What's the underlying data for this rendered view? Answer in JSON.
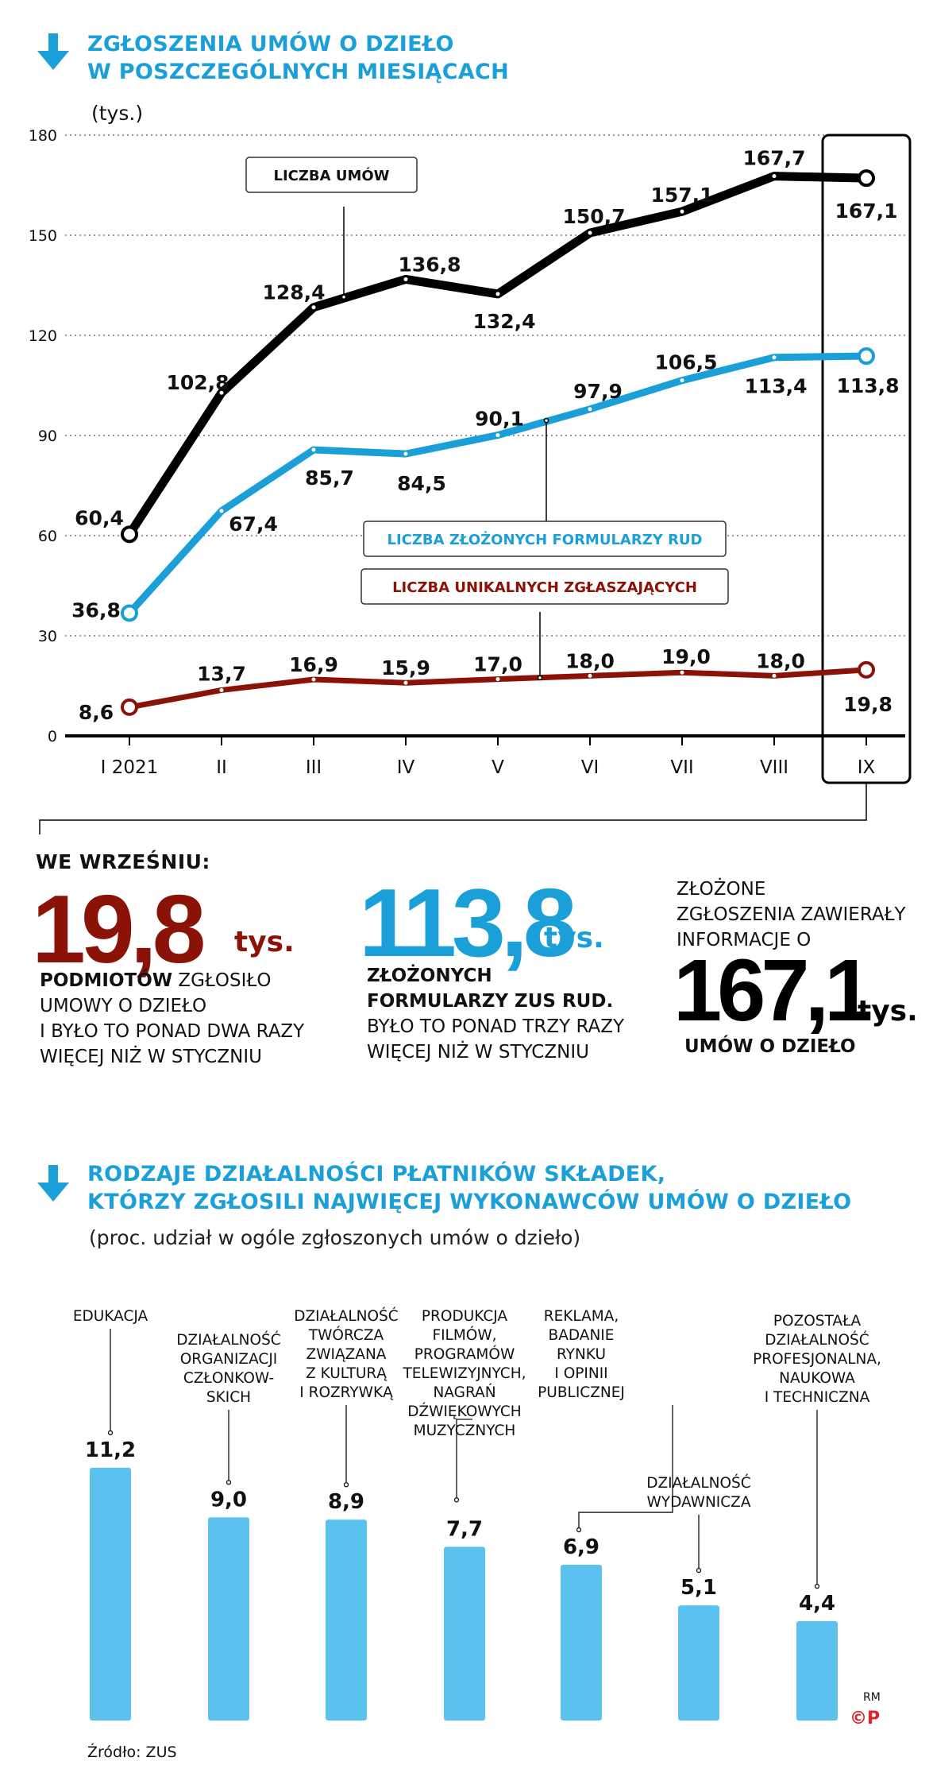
{
  "chart_data": [
    {
      "type": "line",
      "title": "ZGŁOSZENIA UMÓW O DZIEŁO\nW POSZCZEGÓLNYCH MIESIĄCACH",
      "title_line1": "ZGŁOSZENIA UMÓW O DZIEŁO",
      "title_line2": "W POSZCZEGÓLNYCH MIESIĄCACH",
      "unit": "(tys.)",
      "categories": [
        "I 2021",
        "II",
        "III",
        "IV",
        "V",
        "VI",
        "VII",
        "VIII",
        "IX"
      ],
      "y_ticks": [
        "0",
        "30",
        "60",
        "90",
        "120",
        "150",
        "180"
      ],
      "ylim": [
        0,
        180
      ],
      "grid": true,
      "series": [
        {
          "name": "LICZBA UMÓW",
          "color": "#000000",
          "values": [
            60.4,
            102.8,
            128.4,
            136.8,
            132.4,
            150.7,
            157.1,
            167.7,
            167.1
          ],
          "labels": [
            "60,4",
            "102,8",
            "128,4",
            "136,8",
            "132,4",
            "150,7",
            "157,1",
            "167,7",
            "167,1"
          ]
        },
        {
          "name": "LICZBA ZŁOŻONYCH FORMULARZY RUD",
          "color": "#1a9fd9",
          "values": [
            36.8,
            67.4,
            85.7,
            84.5,
            90.1,
            97.9,
            106.5,
            113.4,
            113.8
          ],
          "labels": [
            "36,8",
            "67,4",
            "85,7",
            "84,5",
            "90,1",
            "97,9",
            "106,5",
            "113,4",
            "113,8"
          ]
        },
        {
          "name": "LICZBA UNIKALNYCH ZGŁASZAJĄCYCH",
          "color": "#8b1206",
          "values": [
            8.6,
            13.7,
            16.9,
            15.9,
            17.0,
            18.0,
            19.0,
            18.0,
            19.8
          ],
          "labels": [
            "8,6",
            "13,7",
            "16,9",
            "15,9",
            "17,0",
            "18,0",
            "19,0",
            "18,0",
            "19,8"
          ]
        }
      ]
    },
    {
      "type": "bar",
      "title": "RODZAJE DZIAŁALNOŚCI PŁATNIKÓW SKŁADEK,\nKTÓRZY ZGŁOSILI NAJWIĘCEJ WYKONAWCÓW UMÓW O DZIEŁO",
      "title_line1": "RODZAJE DZIAŁALNOŚCI PŁATNIKÓW SKŁADEK,",
      "title_line2": "KTÓRZY ZGŁOSILI NAJWIĘCEJ WYKONAWCÓW UMÓW O DZIEŁO",
      "subtitle": "(proc. udział w ogóle zgłoszonych umów o dzieło)",
      "color": "#5bc2ef",
      "categories": [
        [
          "EDUKACJA"
        ],
        [
          "DZIAŁALNOŚĆ",
          "ORGANIZACJI",
          "CZŁONKOW-",
          "SKICH"
        ],
        [
          "DZIAŁALNOŚĆ",
          "TWÓRCZA",
          "ZWIĄZANA",
          "Z KULTURĄ",
          "I ROZRYWKĄ"
        ],
        [
          "PRODUKCJA",
          "FILMÓW,",
          "PROGRAMÓW",
          "TELEWIZYJNYCH,",
          "NAGRAŃ",
          "DŹWIĘKOWYCH",
          "MUZYCZNYCH"
        ],
        [
          "REKLAMA,",
          "BADANIE",
          "RYNKU",
          "I OPINII",
          "PUBLICZNEJ"
        ],
        [
          "DZIAŁALNOŚĆ",
          "WYDAWNICZA"
        ],
        [
          "POZOSTAŁA",
          "DZIAŁALNOŚĆ",
          "PROFESJONALNA,",
          "NAUKOWA",
          "I TECHNICZNA"
        ]
      ],
      "values": [
        11.2,
        9.0,
        8.9,
        7.7,
        6.9,
        5.1,
        4.4
      ],
      "labels": [
        "11,2",
        "9,0",
        "8,9",
        "7,7",
        "6,9",
        "5,1",
        "4,4"
      ]
    }
  ],
  "summary": {
    "heading": "WE  WRZEŚNIU:",
    "block1": {
      "number": "19,8",
      "unit": "tys.",
      "bold": "PODMIOTÓW",
      "line1_rest": " ZGŁOSIŁO",
      "line2": "UMOWY O DZIEŁO",
      "line3": "I BYŁO TO PONAD DWA RAZY",
      "line4": "WIĘCEJ NIŻ  W STYCZNIU"
    },
    "block2": {
      "number": "113,8",
      "unit": "tys.",
      "bold1": "ZŁOŻONYCH",
      "bold2": "FORMULARZY ZUS RUD.",
      "line3": "BYŁO TO PONAD TRZY RAZY",
      "line4": "WIĘCEJ NIŻ W STYCZNIU"
    },
    "block3": {
      "line1": "ZŁOŻONE",
      "line2": "ZGŁOSZENIA ZAWIERAŁY",
      "line3": "INFORMACJE O",
      "number": "167,1",
      "unit": "tys.",
      "bold": "UMÓW O DZIEŁO"
    }
  },
  "footer": {
    "source": "Źródło: ZUS",
    "author": "RM",
    "logo": "©P"
  },
  "colors": {
    "accent": "#1a9fd9",
    "dark_red": "#8b1206",
    "black": "#000000",
    "bar": "#5bc2ef"
  }
}
